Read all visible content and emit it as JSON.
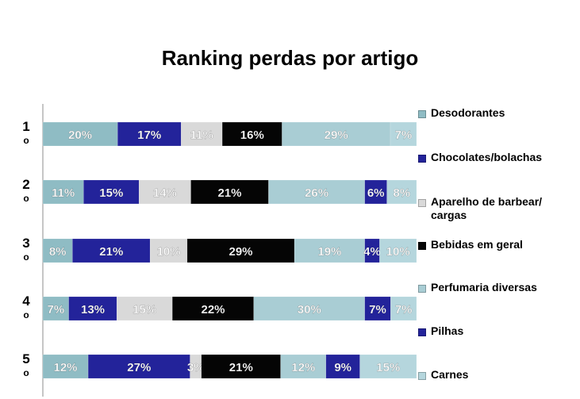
{
  "chart_data": {
    "type": "bar",
    "orientation": "horizontal",
    "stacked": "percent",
    "title": "Ranking perdas por artigo",
    "categories": [
      "1\no",
      "2\no",
      "3\no",
      "4\no",
      "5\no"
    ],
    "series": [
      {
        "name": "Desodorantes",
        "color": "#8fbcc4",
        "values": [
          20,
          11,
          8,
          7,
          12
        ]
      },
      {
        "name": "Chocolates/bolachas",
        "color": "#23239a",
        "values": [
          17,
          15,
          21,
          13,
          27
        ]
      },
      {
        "name": "Aparelho de barbear/\ncargas",
        "color": "#d9d9d9",
        "values": [
          11,
          14,
          10,
          15,
          3
        ]
      },
      {
        "name": "Bebidas em geral",
        "color": "#050505",
        "values": [
          16,
          21,
          29,
          22,
          21
        ]
      },
      {
        "name": "Perfumaria diversas",
        "color": "#a9cdd4",
        "values": [
          29,
          26,
          19,
          30,
          12
        ]
      },
      {
        "name": "Pilhas",
        "color": "#23239a",
        "values": [
          0,
          6,
          4,
          7,
          9
        ]
      },
      {
        "name": "Carnes",
        "color": "#b5d6dd",
        "values": [
          7,
          8,
          10,
          7,
          15
        ]
      }
    ],
    "data_labels": [
      [
        "20%",
        "17%",
        "11%",
        "16%",
        "29%",
        "",
        "7%"
      ],
      [
        "11%",
        "15%",
        "14%",
        "21%",
        "26%",
        "6%",
        "8%"
      ],
      [
        "8%",
        "21%",
        "10%",
        "29%",
        "19%",
        "4%",
        "10%"
      ],
      [
        "7%",
        "13%",
        "15%",
        "22%",
        "30%",
        "7%",
        "7%"
      ],
      [
        "12%",
        "27%",
        "3%",
        "21%",
        "12%",
        "9%",
        "15%"
      ]
    ],
    "legend_position": "right",
    "grid": false
  }
}
